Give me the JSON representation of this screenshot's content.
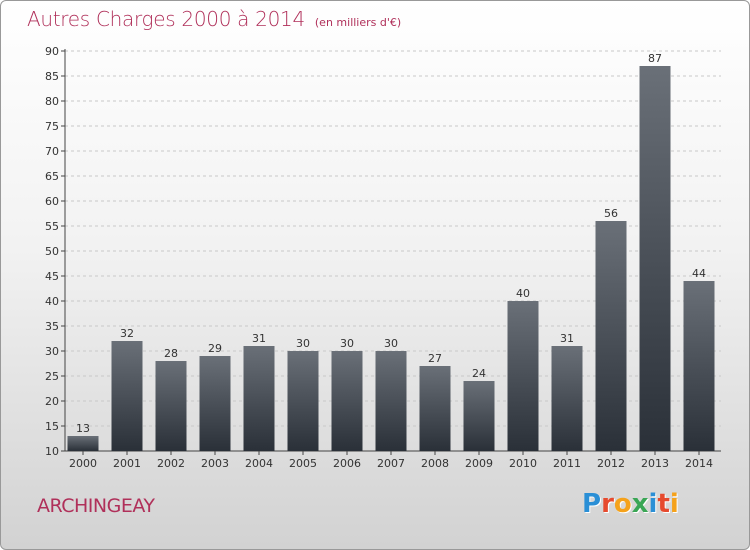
{
  "title": "Autres Charges 2000 à 2014",
  "unit_note": "(en milliers d'€)",
  "commune": "ARCHINGEAY",
  "logo_text": "Proxiti",
  "colors": {
    "title": "#b0305a",
    "bar_top": "#6a7078",
    "bar_bottom": "#2a3038",
    "logo": [
      "#2a8fd6",
      "#e64a2e",
      "#f5a21b",
      "#3aa655",
      "#2a8fd6",
      "#e64a2e",
      "#f5a21b"
    ]
  },
  "chart_data": {
    "type": "bar",
    "title": "Autres Charges 2000 à 2014",
    "subtitle": "(en milliers d'€)",
    "categories": [
      "2000",
      "2001",
      "2002",
      "2003",
      "2004",
      "2005",
      "2006",
      "2007",
      "2008",
      "2009",
      "2010",
      "2011",
      "2012",
      "2013",
      "2014"
    ],
    "values": [
      13,
      32,
      28,
      29,
      31,
      30,
      30,
      30,
      27,
      24,
      40,
      31,
      56,
      87,
      44
    ],
    "ylim": [
      10,
      90
    ],
    "yticks": [
      10,
      15,
      20,
      25,
      30,
      35,
      40,
      45,
      50,
      55,
      60,
      65,
      70,
      75,
      80,
      85,
      90
    ],
    "grid": true,
    "xlabel": "",
    "ylabel": ""
  }
}
